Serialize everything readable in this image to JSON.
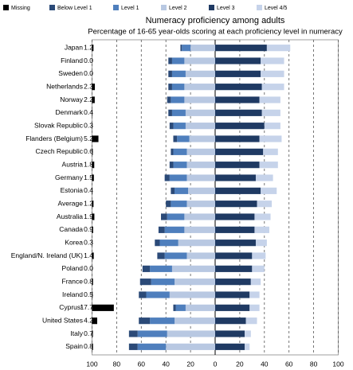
{
  "chart_data": {
    "type": "diverging-bar",
    "title": "Numeracy proficiency among adults",
    "subtitle": "Percentage of 16-65 year-olds scoring at each proficiency level in numeracy",
    "categories": [
      "Japan",
      "Finland",
      "Sweden",
      "Netherlands",
      "Norway",
      "Denmark",
      "Slovak Republic",
      "Flanders (Belgium)",
      "Czech Republic",
      "Austria",
      "Germany",
      "Estonia",
      "Average",
      "Australia",
      "Canada",
      "Korea",
      "England/N. Ireland (UK)",
      "Poland",
      "France",
      "Ireland",
      "Cyprus¹",
      "United States",
      "Italy",
      "Spain"
    ],
    "series": [
      {
        "name": "Missing",
        "color": "#000000",
        "values": [
          1.2,
          0.0,
          0.0,
          2.3,
          2.2,
          0.4,
          0.3,
          5.2,
          0.6,
          1.8,
          1.5,
          0.4,
          1.2,
          1.9,
          0.9,
          0.3,
          1.4,
          0.0,
          0.8,
          0.5,
          17.7,
          4.2,
          0.7,
          0.8
        ],
        "value_labels": [
          "1.2",
          "0.0",
          "0.0",
          "2.3",
          "2.2",
          "0.4",
          "0.3",
          "5.2",
          "0.6",
          "1.8",
          "1.5",
          "0.4",
          "1.2",
          "1.9",
          "0.9",
          "0.3",
          "1.4",
          "0.0",
          "0.8",
          "0.5",
          "17.7",
          "4.2",
          "0.7",
          "0.8"
        ]
      },
      {
        "name": "Below Level 1",
        "color": "#2b4a78",
        "values": [
          1.2,
          3,
          3,
          3,
          3,
          3,
          3,
          3,
          2,
          3,
          4,
          3,
          4,
          5,
          5,
          4,
          6,
          6,
          9,
          6,
          2,
          9,
          7,
          7
        ]
      },
      {
        "name": "Level 1",
        "color": "#4f7fbd",
        "values": [
          7,
          10,
          11,
          10,
          11,
          11,
          10,
          10,
          11,
          11,
          14,
          11,
          13,
          14,
          16,
          15,
          18,
          18,
          19,
          19,
          8,
          20,
          24,
          23
        ]
      },
      {
        "name": "Level 2",
        "color": "#b8c8e2",
        "values": [
          20,
          25,
          24,
          25,
          25,
          24,
          24,
          21,
          23,
          23,
          23,
          22,
          23,
          25,
          25,
          30,
          23,
          35,
          33,
          37,
          24,
          33,
          39,
          40
        ]
      },
      {
        "name": "Level 3",
        "color": "#1f3a63",
        "values": [
          42,
          37,
          37,
          38,
          36,
          38,
          40,
          36,
          39,
          36,
          33,
          37,
          34,
          32,
          32,
          33,
          30,
          30,
          29,
          28,
          28,
          25,
          24,
          24
        ]
      },
      {
        "name": "Level 4/5",
        "color": "#c6d3ea",
        "values": [
          19,
          19,
          19,
          18,
          17,
          15,
          13,
          18,
          12,
          15,
          14,
          13,
          12,
          13,
          12,
          9,
          11,
          10,
          8,
          8,
          8,
          9,
          5,
          4
        ]
      }
    ],
    "xlim": [
      -100,
      100
    ],
    "xticks": [
      {
        "value": -100,
        "label": "100"
      },
      {
        "value": -80,
        "label": "80"
      },
      {
        "value": -60,
        "label": "60"
      },
      {
        "value": -40,
        "label": "40"
      },
      {
        "value": -20,
        "label": "20"
      },
      0,
      20,
      40,
      60,
      80,
      100
    ],
    "grid": true
  }
}
